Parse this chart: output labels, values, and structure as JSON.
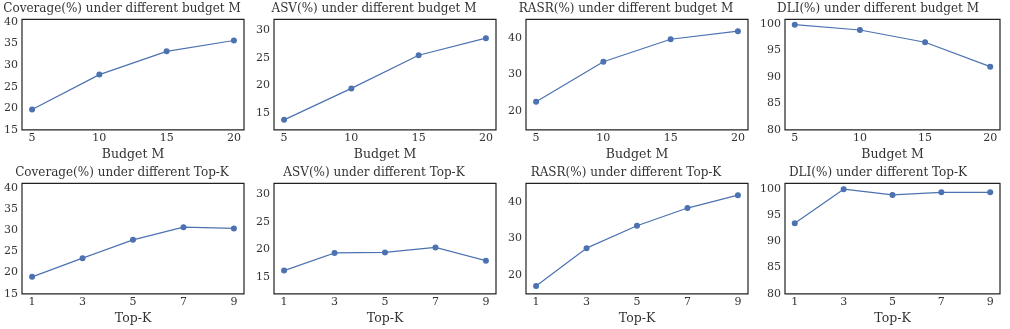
{
  "chart_data": [
    {
      "type": "line",
      "title": "Coverage(%) under different budget M",
      "xlabel": "Budget M",
      "x": [
        5,
        10,
        15,
        20
      ],
      "values": [
        19.7,
        27.8,
        33.2,
        35.7
      ],
      "color": "#4c72b0",
      "marker": "circle",
      "xlim": [
        4.25,
        20.75
      ],
      "xticks": [
        5,
        10,
        15,
        20
      ],
      "ylim": [
        15,
        40.6
      ],
      "yticks": [
        15,
        20,
        25,
        30,
        35,
        40
      ]
    },
    {
      "type": "line",
      "title": "ASV(%) under different budget M",
      "xlabel": "Budget M",
      "x": [
        5,
        10,
        15,
        20
      ],
      "values": [
        13.8,
        19.5,
        25.5,
        28.6
      ],
      "color": "#4c72b0",
      "marker": "circle",
      "xlim": [
        4.25,
        20.75
      ],
      "xticks": [
        5,
        10,
        15,
        20
      ],
      "ylim": [
        12,
        32
      ],
      "yticks": [
        15,
        20,
        25,
        30
      ]
    },
    {
      "type": "line",
      "title": "RASR(%) under different budget M",
      "xlabel": "Budget M",
      "x": [
        5,
        10,
        15,
        20
      ],
      "values": [
        22.6,
        33.5,
        39.6,
        41.8
      ],
      "color": "#4c72b0",
      "marker": "circle",
      "xlim": [
        4.25,
        20.75
      ],
      "xticks": [
        5,
        10,
        15,
        20
      ],
      "ylim": [
        15,
        45
      ],
      "yticks": [
        20,
        30,
        40
      ]
    },
    {
      "type": "line",
      "title": "DLI(%) under different budget M",
      "xlabel": "Budget M",
      "x": [
        5,
        10,
        15,
        20
      ],
      "values": [
        99.8,
        98.8,
        96.5,
        91.9
      ],
      "color": "#4c72b0",
      "marker": "circle",
      "xlim": [
        4.25,
        20.75
      ],
      "xticks": [
        5,
        10,
        15,
        20
      ],
      "ylim": [
        80,
        100.8
      ],
      "yticks": [
        80,
        85,
        90,
        95,
        100
      ]
    },
    {
      "type": "line",
      "title": "Coverage(%) under different Top-K",
      "xlabel": "Top-K",
      "x": [
        1,
        3,
        5,
        7,
        9
      ],
      "values": [
        19.0,
        23.4,
        27.7,
        30.7,
        30.4
      ],
      "color": "#4c72b0",
      "marker": "circle",
      "xlim": [
        0.6,
        9.4
      ],
      "xticks": [
        1,
        3,
        5,
        7,
        9
      ],
      "ylim": [
        15,
        41
      ],
      "yticks": [
        15,
        20,
        25,
        30,
        35,
        40
      ]
    },
    {
      "type": "line",
      "title": "ASV(%) under different Top-K",
      "xlabel": "Top-K",
      "x": [
        1,
        3,
        5,
        7,
        9
      ],
      "values": [
        16.2,
        19.4,
        19.5,
        20.4,
        18.0
      ],
      "color": "#4c72b0",
      "marker": "circle",
      "xlim": [
        0.6,
        9.4
      ],
      "xticks": [
        1,
        3,
        5,
        7,
        9
      ],
      "ylim": [
        12,
        32
      ],
      "yticks": [
        15,
        20,
        25,
        30
      ]
    },
    {
      "type": "line",
      "title": "RASR(%) under different Top-K",
      "xlabel": "Top-K",
      "x": [
        1,
        3,
        5,
        7,
        9
      ],
      "values": [
        17.1,
        27.4,
        33.5,
        38.3,
        41.8
      ],
      "color": "#4c72b0",
      "marker": "circle",
      "xlim": [
        0.6,
        9.4
      ],
      "xticks": [
        1,
        3,
        5,
        7,
        9
      ],
      "ylim": [
        15,
        45
      ],
      "yticks": [
        20,
        30,
        40
      ]
    },
    {
      "type": "line",
      "title": "DLI(%) under different Top-K",
      "xlabel": "Top-K",
      "x": [
        1,
        3,
        5,
        7,
        9
      ],
      "values": [
        93.4,
        99.9,
        98.8,
        99.3,
        99.3
      ],
      "color": "#4c72b0",
      "marker": "circle",
      "xlim": [
        0.6,
        9.4
      ],
      "xticks": [
        1,
        3,
        5,
        7,
        9
      ],
      "ylim": [
        80,
        101
      ],
      "yticks": [
        80,
        85,
        90,
        95,
        100
      ]
    }
  ]
}
